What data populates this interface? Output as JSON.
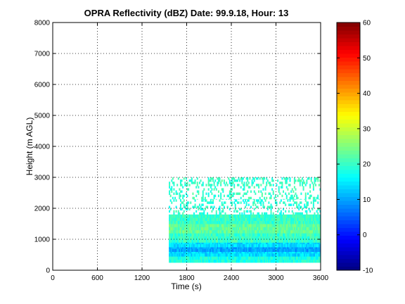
{
  "chart_data": {
    "type": "heatmap",
    "title": "OPRA Reflectivity (dBZ)  Date: 99.9.18, Hour: 13",
    "xlabel": "Time (s)",
    "ylabel": "Height (m AGL)",
    "xlim": [
      0,
      3600
    ],
    "ylim": [
      0,
      8000
    ],
    "x_ticks": [
      "0",
      "600",
      "1200",
      "1800",
      "2400",
      "3000",
      "3600"
    ],
    "y_ticks": [
      "0",
      "1000",
      "2000",
      "3000",
      "4000",
      "5000",
      "6000",
      "7000",
      "8000"
    ],
    "grid": true,
    "colorbar": {
      "range": [
        -10,
        60
      ],
      "ticks": [
        "-10",
        "0",
        "10",
        "20",
        "30",
        "40",
        "50",
        "60"
      ],
      "colormap": "jet"
    },
    "data_extent": {
      "time_start": 1560,
      "time_end": 3600,
      "height_start": 250,
      "height_end": 3000
    },
    "layers": [
      {
        "height_range": [
          250,
          450
        ],
        "dbz_mean": 18
      },
      {
        "height_range": [
          450,
          600
        ],
        "dbz_mean": 14
      },
      {
        "height_range": [
          600,
          750
        ],
        "dbz_mean": 10
      },
      {
        "height_range": [
          750,
          900
        ],
        "dbz_mean": 14
      },
      {
        "height_range": [
          900,
          1200
        ],
        "dbz_mean": 20
      },
      {
        "height_range": [
          1200,
          1500
        ],
        "dbz_mean": 23
      },
      {
        "height_range": [
          1500,
          1800
        ],
        "dbz_mean": 20
      },
      {
        "height_range": [
          1800,
          2300
        ],
        "dbz_mean": 19,
        "sparse": true
      },
      {
        "height_range": [
          2300,
          3000
        ],
        "dbz_mean": 20,
        "sparse": true
      }
    ]
  }
}
